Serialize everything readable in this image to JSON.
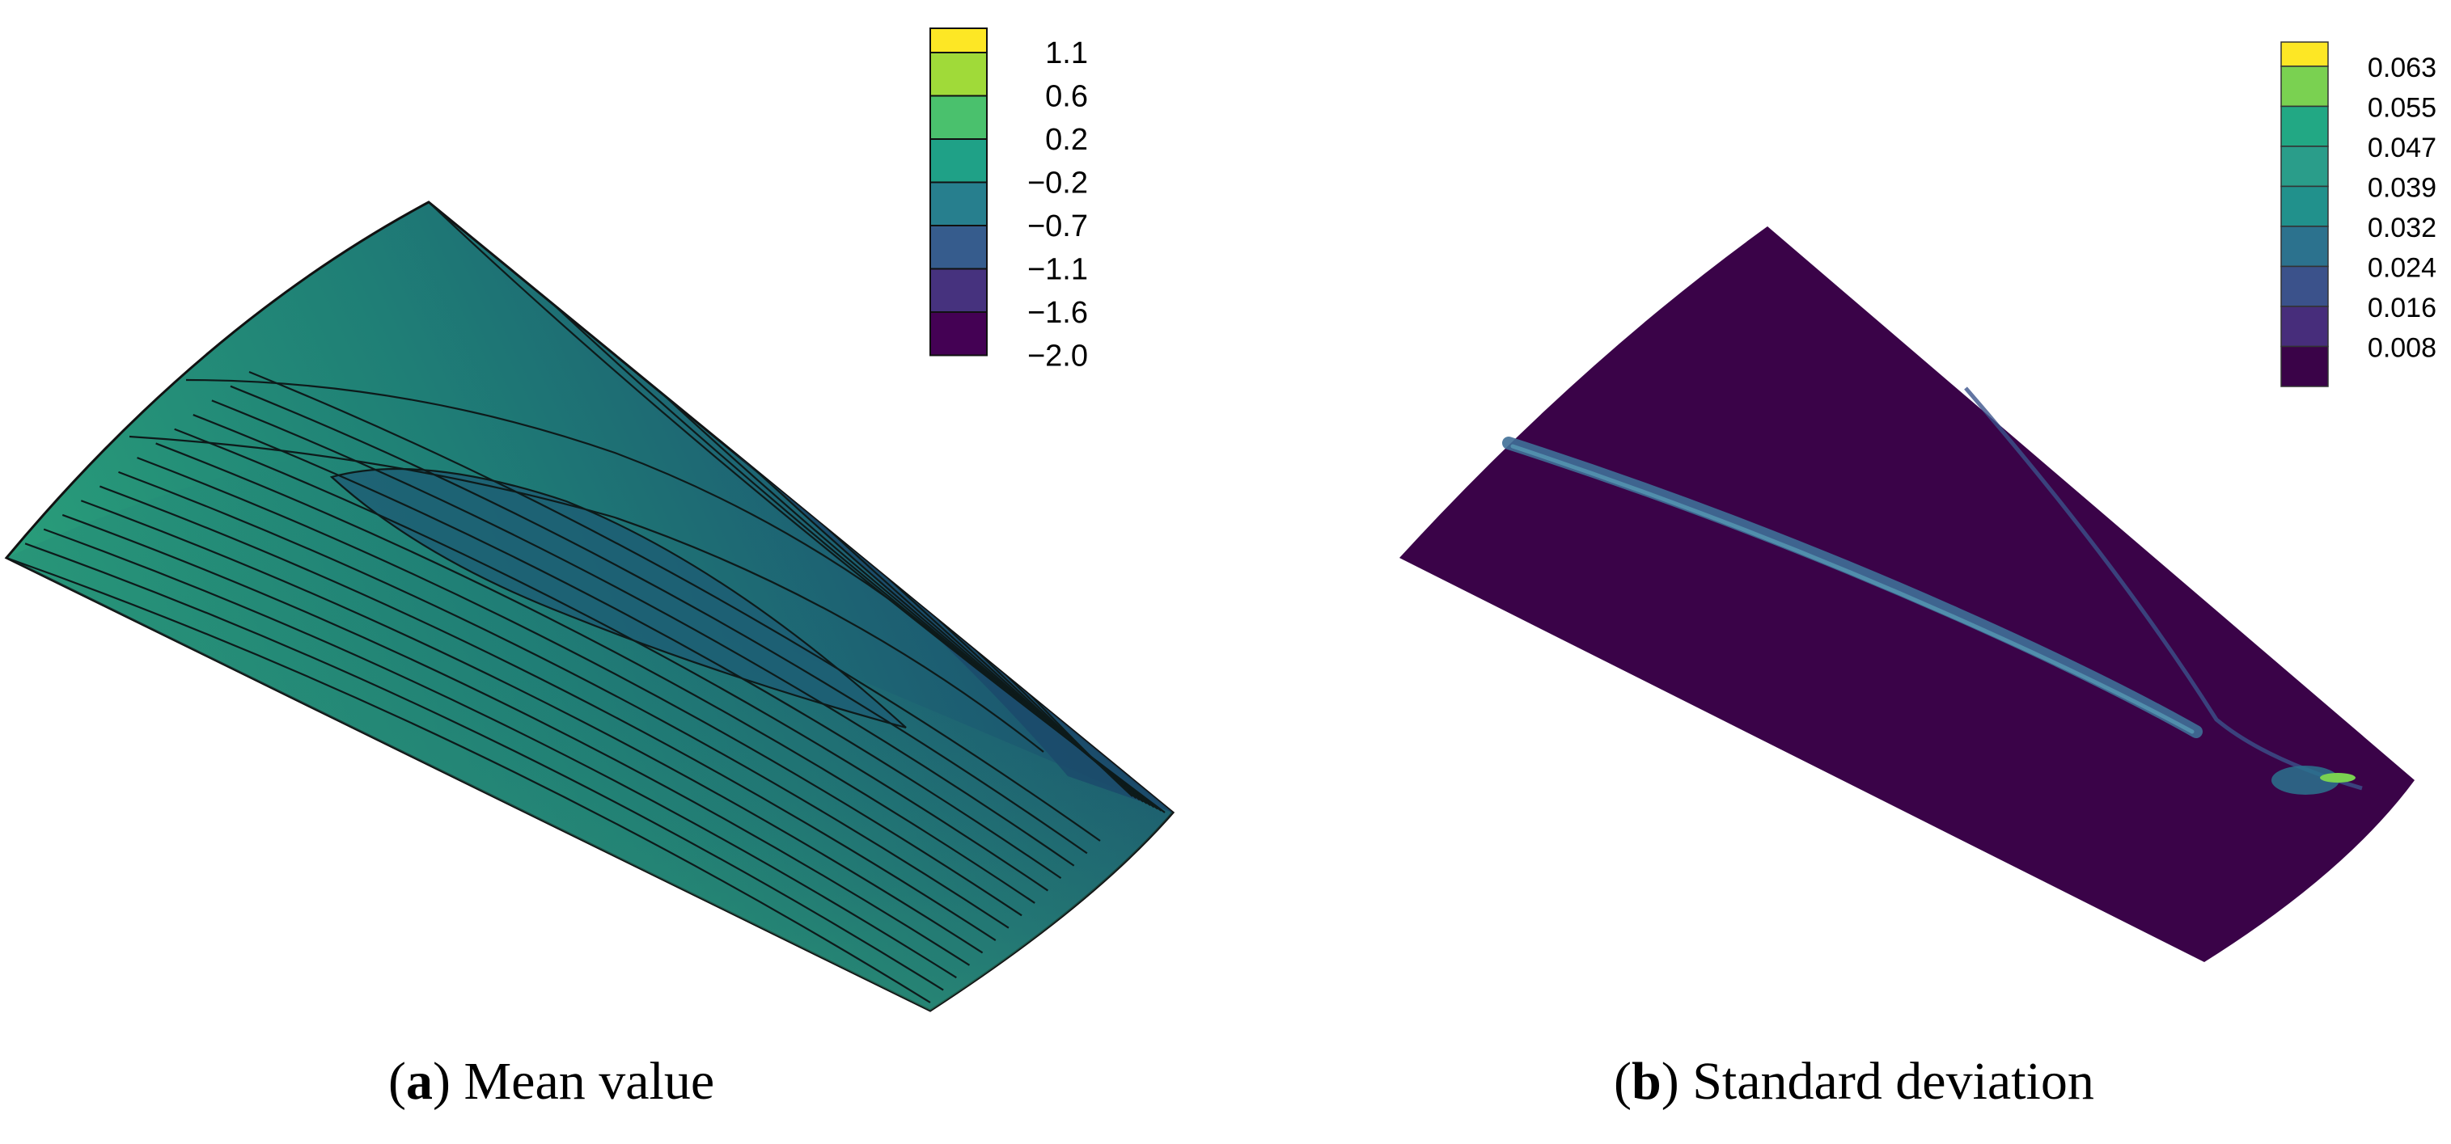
{
  "panels": [
    {
      "id": "a",
      "letter": "a",
      "caption": "Mean value",
      "colorbar": {
        "ticks": [
          "1.1",
          "0.6",
          "0.2",
          "−0.2",
          "−0.7",
          "−1.1",
          "−1.6",
          "−2.0"
        ],
        "colors": [
          "#fde725",
          "#a0da39",
          "#4ac16d",
          "#1fa187",
          "#277f8e",
          "#365c8d",
          "#46327e",
          "#440154"
        ]
      },
      "contour_levels": 24
    },
    {
      "id": "b",
      "letter": "b",
      "caption": "Standard deviation",
      "colorbar": {
        "ticks": [
          "0.063",
          "0.055",
          "0.047",
          "0.039",
          "0.032",
          "0.024",
          "0.016",
          "0.008"
        ],
        "colors": [
          "#fde725",
          "#7ad151",
          "#22a884",
          "#2a9d8a",
          "#21918c",
          "#2c728e",
          "#3b528b",
          "#472d7b",
          "#3a0348"
        ]
      }
    }
  ],
  "colors": {
    "wing_a_base": "#1f8a6e",
    "wing_a_upper": "#1f6c74",
    "wing_a_dark": "#1d4a6c",
    "wing_b_base": "#3a0348",
    "wing_b_streak": "#3f6f97"
  }
}
